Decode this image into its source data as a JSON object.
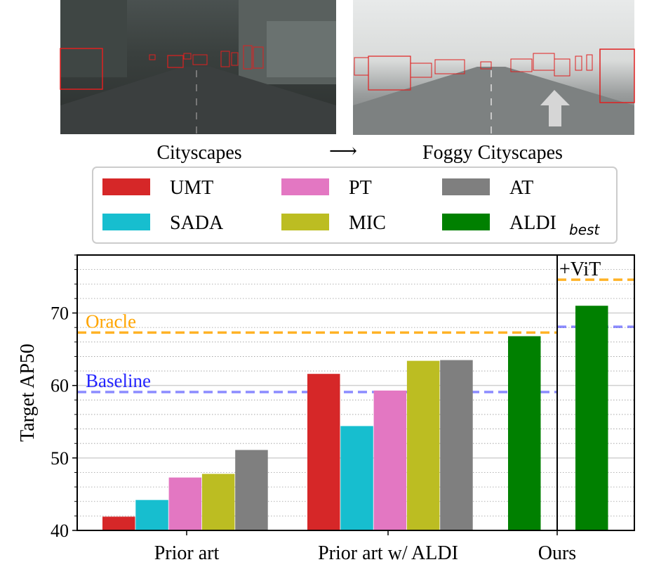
{
  "header": {
    "left_caption": "Cityscapes",
    "arrow": "⟶",
    "right_caption": "Foggy Cityscapes"
  },
  "legend": {
    "placement": "top",
    "items": [
      {
        "label": "UMT",
        "sub": "",
        "color": "#d62728"
      },
      {
        "label": "PT",
        "sub": "",
        "color": "#e377c2"
      },
      {
        "label": "AT",
        "sub": "",
        "color": "#7f7f7f"
      },
      {
        "label": "SADA",
        "sub": "",
        "color": "#17becf"
      },
      {
        "label": "MIC",
        "sub": "",
        "color": "#bcbd22"
      },
      {
        "label": "ALDI",
        "sub": "best",
        "color": "#008000"
      }
    ]
  },
  "chart_data": {
    "type": "bar",
    "ylabel": "Target AP50",
    "ylim": [
      40,
      78
    ],
    "yticks": [
      40,
      50,
      60,
      70
    ],
    "grid": "horizontal major and minor",
    "groups": [
      {
        "label": "Prior art",
        "bars": [
          {
            "method": "UMT",
            "value": 41.9
          },
          {
            "method": "SADA",
            "value": 44.2
          },
          {
            "method": "PT",
            "value": 47.3
          },
          {
            "method": "MIC",
            "value": 47.8
          },
          {
            "method": "AT",
            "value": 51.1
          }
        ]
      },
      {
        "label": "Prior art w/ ALDI",
        "bars": [
          {
            "method": "UMT",
            "value": 61.6
          },
          {
            "method": "SADA",
            "value": 54.4
          },
          {
            "method": "PT",
            "value": 59.3
          },
          {
            "method": "MIC",
            "value": 63.4
          },
          {
            "method": "AT",
            "value": 63.5
          }
        ]
      },
      {
        "label": "Ours",
        "bars": [
          {
            "method": "ALDI",
            "value": 66.8
          }
        ]
      },
      {
        "label": "",
        "panel_label": "+ViT",
        "bars": [
          {
            "method": "ALDI",
            "value": 71.0
          }
        ]
      }
    ],
    "reference_lines": [
      {
        "name": "Oracle",
        "value": 67.3,
        "color": "#ffa500",
        "labeled": true,
        "panel": "main"
      },
      {
        "name": "Baseline",
        "value": 59.1,
        "color": "#0000ff",
        "labeled": true,
        "panel": "main"
      },
      {
        "name": "Oracle",
        "value": 74.6,
        "color": "#ffa500",
        "labeled": false,
        "panel": "vit"
      },
      {
        "name": "Baseline",
        "value": 68.1,
        "color": "#0000ff",
        "labeled": false,
        "panel": "vit"
      }
    ]
  }
}
